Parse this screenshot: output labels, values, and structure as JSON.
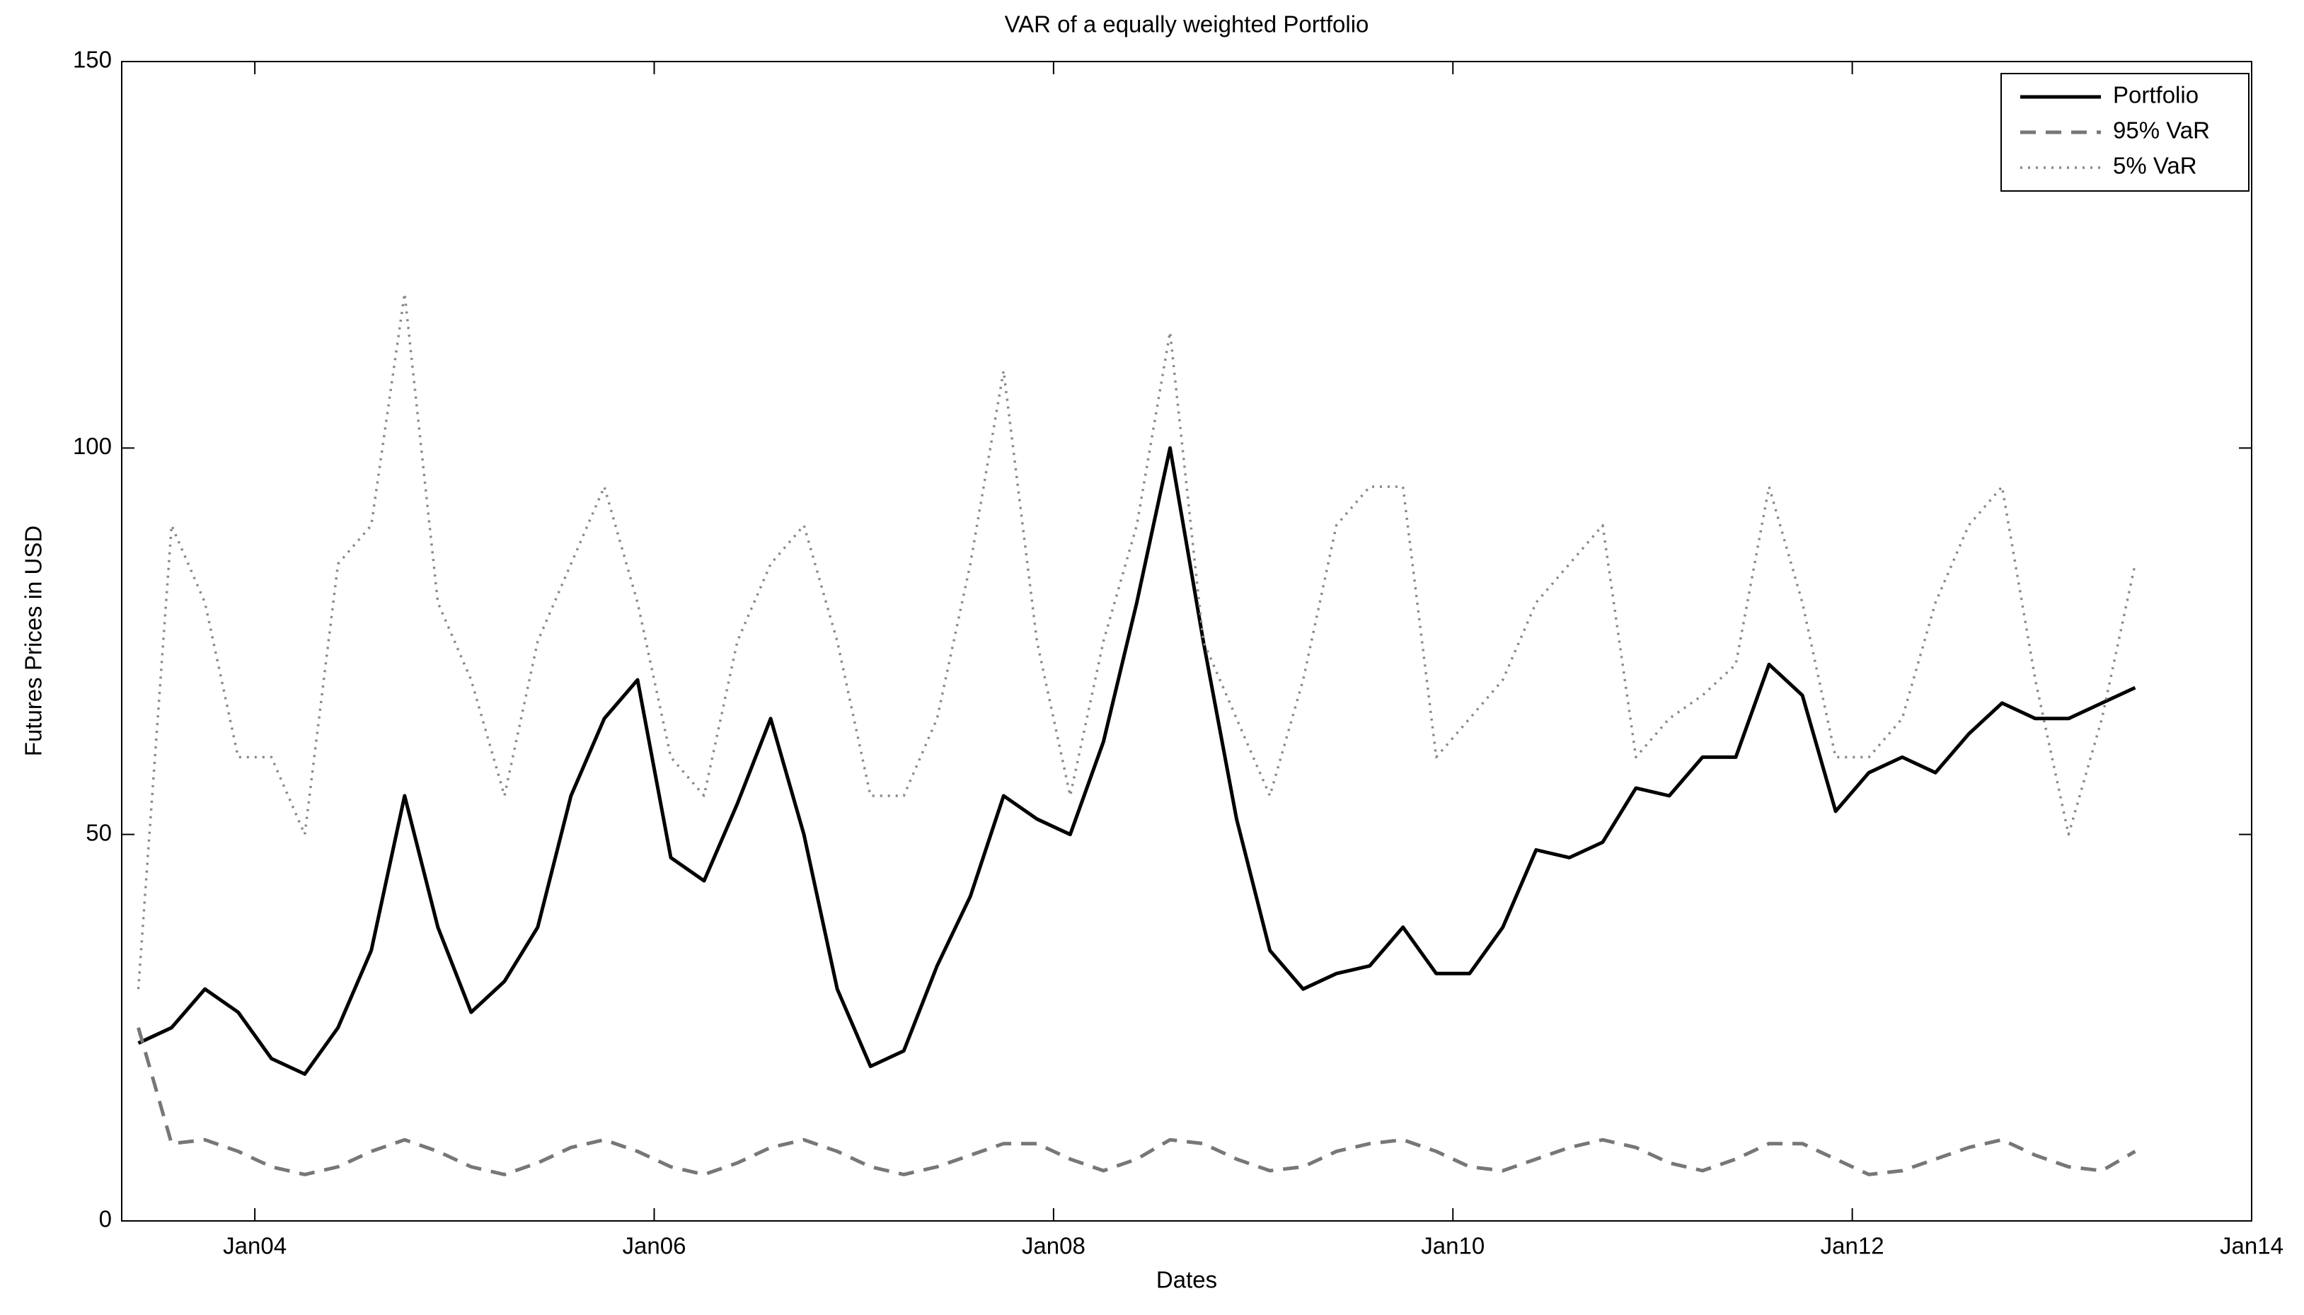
{
  "chart_data": {
    "type": "line",
    "title": "VAR of a equally weighted Portfolio",
    "x_label": "Dates",
    "y_label": "Futures Prices in USD",
    "x": [
      "2003-06",
      "2003-08",
      "2003-10",
      "2003-12",
      "2004-02",
      "2004-04",
      "2004-06",
      "2004-08",
      "2004-10",
      "2004-12",
      "2005-02",
      "2005-04",
      "2005-06",
      "2005-08",
      "2005-10",
      "2005-12",
      "2006-02",
      "2006-04",
      "2006-06",
      "2006-08",
      "2006-10",
      "2006-12",
      "2007-02",
      "2007-04",
      "2007-06",
      "2007-08",
      "2007-10",
      "2007-12",
      "2008-02",
      "2008-04",
      "2008-06",
      "2008-08",
      "2008-10",
      "2008-12",
      "2009-02",
      "2009-04",
      "2009-06",
      "2009-08",
      "2009-10",
      "2009-12",
      "2010-02",
      "2010-04",
      "2010-06",
      "2010-08",
      "2010-10",
      "2010-12",
      "2011-02",
      "2011-04",
      "2011-06",
      "2011-08",
      "2011-10",
      "2011-12",
      "2012-02",
      "2012-04",
      "2012-06",
      "2012-08",
      "2012-10",
      "2012-12",
      "2013-02",
      "2013-04",
      "2013-06"
    ],
    "series": [
      {
        "name": "Portfolio",
        "color": "#000000",
        "style": "solid",
        "values": [
          23,
          25,
          30,
          27,
          21,
          19,
          25,
          35,
          55,
          38,
          27,
          31,
          38,
          55,
          65,
          70,
          47,
          44,
          54,
          65,
          50,
          30,
          20,
          22,
          33,
          42,
          55,
          52,
          50,
          62,
          80,
          100,
          75,
          52,
          35,
          30,
          32,
          33,
          38,
          32,
          32,
          38,
          48,
          47,
          49,
          56,
          55,
          60,
          60,
          72,
          68,
          53,
          58,
          60,
          58,
          63,
          67,
          65,
          65,
          67,
          69
        ]
      },
      {
        "name": "95% VaR",
        "color": "#777777",
        "style": "dashed",
        "values": [
          25,
          10,
          10.5,
          9,
          7,
          6,
          7,
          9,
          10.5,
          9,
          7,
          6,
          7.5,
          9.5,
          10.5,
          9,
          7,
          6,
          7.5,
          9.5,
          10.5,
          9,
          7,
          6,
          7,
          8.5,
          10,
          10,
          8,
          6.5,
          8,
          10.5,
          10,
          8,
          6.5,
          7,
          9,
          10,
          10.5,
          9,
          7,
          6.5,
          8,
          9.5,
          10.5,
          9.5,
          7.5,
          6.5,
          8,
          10,
          10,
          8,
          6,
          6.5,
          8,
          9.5,
          10.5,
          8.5,
          7,
          6.5,
          9
        ]
      },
      {
        "name": "5% VaR",
        "color": "#888888",
        "style": "dotted",
        "values": [
          30,
          90,
          80,
          60,
          60,
          50,
          85,
          90,
          120,
          80,
          70,
          55,
          75,
          85,
          95,
          80,
          60,
          55,
          75,
          85,
          90,
          75,
          55,
          55,
          65,
          85,
          110,
          75,
          55,
          75,
          90,
          115,
          75,
          65,
          55,
          70,
          90,
          95,
          95,
          60,
          65,
          70,
          80,
          85,
          90,
          60,
          65,
          68,
          72,
          95,
          80,
          60,
          60,
          65,
          80,
          90,
          95,
          70,
          50,
          65,
          85
        ]
      }
    ],
    "xlim": [
      "2003-05",
      "2014-01"
    ],
    "xticks": [
      {
        "value": "2004-01",
        "label": "Jan04"
      },
      {
        "value": "2006-01",
        "label": "Jan06"
      },
      {
        "value": "2008-01",
        "label": "Jan08"
      },
      {
        "value": "2010-01",
        "label": "Jan10"
      },
      {
        "value": "2012-01",
        "label": "Jan12"
      },
      {
        "value": "2014-01",
        "label": "Jan14"
      }
    ],
    "ylim": [
      0,
      150
    ],
    "yticks": [
      0,
      50,
      100,
      150
    ],
    "legend": "upper-right"
  }
}
